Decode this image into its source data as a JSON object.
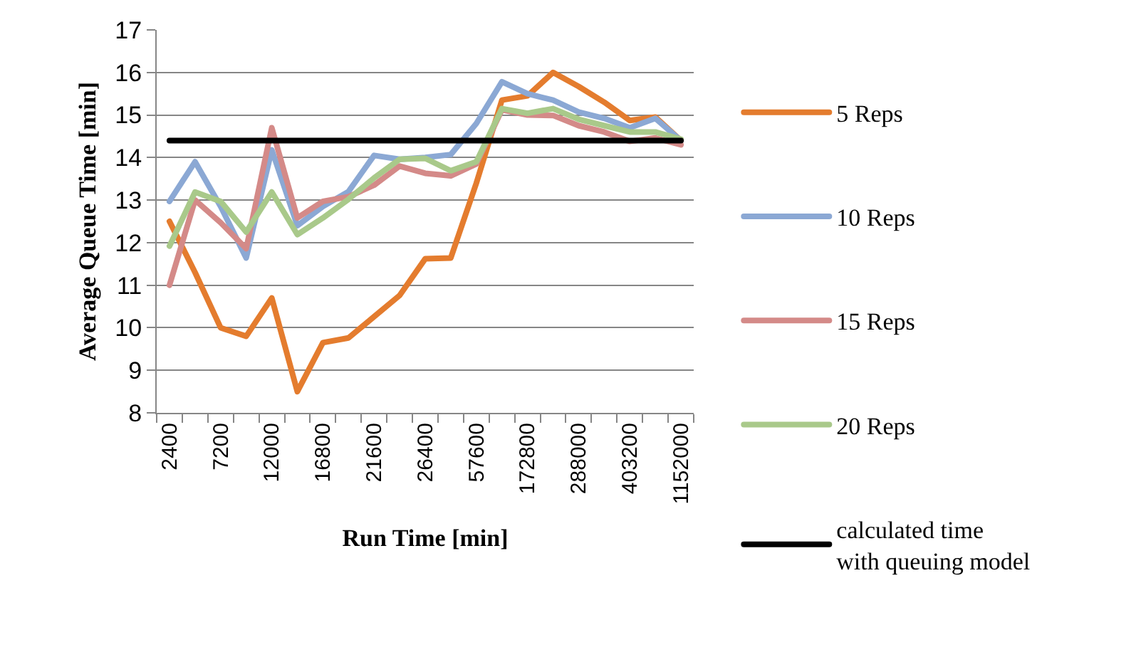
{
  "chart_data": {
    "type": "line",
    "xlabel": "Run Time [min]",
    "ylabel": "Average Queue Time [min]",
    "categories": [
      "2400",
      null,
      "7200",
      null,
      "12000",
      null,
      "16800",
      null,
      "21600",
      null,
      "26400",
      null,
      "57600",
      null,
      "172800",
      null,
      "288000",
      null,
      "403200",
      null,
      "1152000"
    ],
    "ylim": [
      8,
      17
    ],
    "yticks": [
      8,
      9,
      10,
      11,
      12,
      13,
      14,
      15,
      16,
      17
    ],
    "grid": "y",
    "legend": "right",
    "marker": "none",
    "line_style": "solid",
    "series": [
      {
        "name": "5 Reps",
        "color": "#e47c2e",
        "values": [
          12.5,
          11.3,
          10.0,
          9.8,
          10.7,
          8.5,
          9.65,
          9.76,
          10.26,
          10.76,
          11.62,
          11.64,
          13.4,
          15.35,
          15.45,
          16.0,
          15.67,
          15.3,
          14.87,
          14.95,
          14.4
        ]
      },
      {
        "name": "10 Reps",
        "color": "#8ba8d4",
        "values": [
          12.97,
          13.9,
          12.85,
          11.64,
          14.18,
          12.4,
          12.85,
          13.2,
          14.05,
          13.96,
          14.0,
          14.07,
          14.8,
          15.78,
          15.5,
          15.35,
          15.07,
          14.92,
          14.7,
          14.92,
          14.4
        ]
      },
      {
        "name": "15 Reps",
        "color": "#d48a88",
        "values": [
          11.0,
          13.0,
          12.47,
          11.86,
          14.7,
          12.58,
          12.97,
          13.08,
          13.35,
          13.8,
          13.63,
          13.57,
          13.85,
          15.12,
          15.0,
          14.99,
          14.75,
          14.6,
          14.38,
          14.46,
          14.3
        ]
      },
      {
        "name": "20 Reps",
        "color": "#a9c98a",
        "values": [
          11.92,
          13.19,
          12.97,
          12.25,
          13.19,
          12.19,
          12.58,
          13.02,
          13.52,
          13.96,
          13.98,
          13.69,
          13.9,
          15.15,
          15.04,
          15.15,
          14.9,
          14.75,
          14.6,
          14.6,
          14.43
        ]
      },
      {
        "name": "calculated time\nwith queuing model",
        "color": "#000000",
        "values": [
          14.4,
          14.4,
          14.4,
          14.4,
          14.4,
          14.4,
          14.4,
          14.4,
          14.4,
          14.4,
          14.4,
          14.4,
          14.4,
          14.4,
          14.4,
          14.4,
          14.4,
          14.4,
          14.4,
          14.4,
          14.4
        ]
      }
    ]
  }
}
